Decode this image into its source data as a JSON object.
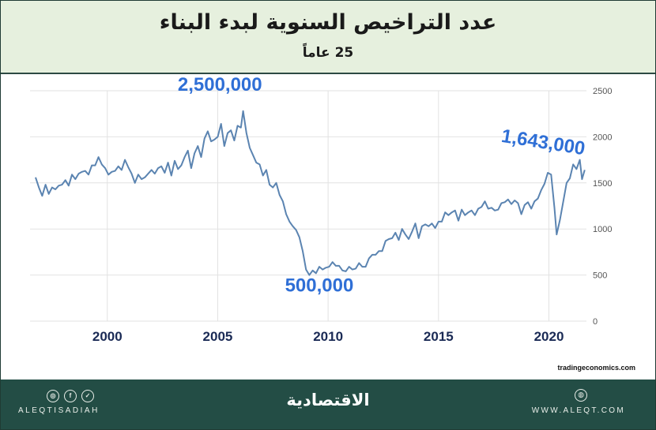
{
  "header": {
    "title": "عدد التراخيص السنوية لبدء البناء",
    "subtitle": "25 عاماً"
  },
  "chart_data": {
    "type": "line",
    "title": "عدد التراخيص السنوية لبدء البناء",
    "subtitle": "25 عاماً",
    "xlim": [
      1996.5,
      2021.7
    ],
    "ylim": [
      0,
      2500
    ],
    "x_ticks": [
      2000,
      2005,
      2010,
      2015,
      2020
    ],
    "y_ticks": [
      0,
      500,
      1000,
      1500,
      2000,
      2500
    ],
    "grid": true,
    "line_color": "#5b84b1",
    "annotation_color": "#2f6fd6",
    "annotations": [
      {
        "text": "2,500,000",
        "x": 2005.1,
        "y": 2500
      },
      {
        "text": "500,000",
        "x": 2009.6,
        "y": 320
      },
      {
        "text": "1,643,000",
        "x": 2019.7,
        "y": 1875
      }
    ],
    "series": [
      {
        "points": [
          [
            1996.75,
            1560
          ],
          [
            1996.9,
            1450
          ],
          [
            1997.05,
            1360
          ],
          [
            1997.2,
            1480
          ],
          [
            1997.35,
            1380
          ],
          [
            1997.5,
            1450
          ],
          [
            1997.65,
            1430
          ],
          [
            1997.8,
            1470
          ],
          [
            1997.95,
            1480
          ],
          [
            1998.1,
            1530
          ],
          [
            1998.25,
            1470
          ],
          [
            1998.4,
            1590
          ],
          [
            1998.55,
            1540
          ],
          [
            1998.7,
            1600
          ],
          [
            1998.85,
            1620
          ],
          [
            1999.0,
            1630
          ],
          [
            1999.15,
            1590
          ],
          [
            1999.3,
            1690
          ],
          [
            1999.45,
            1690
          ],
          [
            1999.6,
            1780
          ],
          [
            1999.75,
            1700
          ],
          [
            1999.9,
            1660
          ],
          [
            2000.05,
            1590
          ],
          [
            2000.2,
            1620
          ],
          [
            2000.35,
            1630
          ],
          [
            2000.5,
            1680
          ],
          [
            2000.65,
            1640
          ],
          [
            2000.8,
            1750
          ],
          [
            2000.95,
            1670
          ],
          [
            2001.1,
            1600
          ],
          [
            2001.25,
            1500
          ],
          [
            2001.4,
            1590
          ],
          [
            2001.55,
            1540
          ],
          [
            2001.7,
            1560
          ],
          [
            2001.85,
            1600
          ],
          [
            2002.0,
            1640
          ],
          [
            2002.15,
            1600
          ],
          [
            2002.3,
            1660
          ],
          [
            2002.45,
            1680
          ],
          [
            2002.6,
            1610
          ],
          [
            2002.75,
            1720
          ],
          [
            2002.9,
            1580
          ],
          [
            2003.05,
            1740
          ],
          [
            2003.2,
            1650
          ],
          [
            2003.35,
            1690
          ],
          [
            2003.5,
            1780
          ],
          [
            2003.65,
            1850
          ],
          [
            2003.8,
            1660
          ],
          [
            2003.95,
            1820
          ],
          [
            2004.1,
            1900
          ],
          [
            2004.25,
            1780
          ],
          [
            2004.4,
            1980
          ],
          [
            2004.55,
            2060
          ],
          [
            2004.7,
            1950
          ],
          [
            2004.85,
            1970
          ],
          [
            2005.0,
            2000
          ],
          [
            2005.15,
            2140
          ],
          [
            2005.3,
            1900
          ],
          [
            2005.45,
            2040
          ],
          [
            2005.6,
            2070
          ],
          [
            2005.75,
            1960
          ],
          [
            2005.9,
            2120
          ],
          [
            2006.05,
            2100
          ],
          [
            2006.15,
            2280
          ],
          [
            2006.3,
            2040
          ],
          [
            2006.45,
            1880
          ],
          [
            2006.6,
            1800
          ],
          [
            2006.75,
            1720
          ],
          [
            2006.9,
            1700
          ],
          [
            2007.05,
            1580
          ],
          [
            2007.2,
            1640
          ],
          [
            2007.35,
            1480
          ],
          [
            2007.5,
            1450
          ],
          [
            2007.65,
            1500
          ],
          [
            2007.8,
            1370
          ],
          [
            2007.95,
            1300
          ],
          [
            2008.1,
            1160
          ],
          [
            2008.25,
            1080
          ],
          [
            2008.4,
            1030
          ],
          [
            2008.55,
            990
          ],
          [
            2008.7,
            910
          ],
          [
            2008.85,
            760
          ],
          [
            2009.0,
            560
          ],
          [
            2009.15,
            500
          ],
          [
            2009.3,
            550
          ],
          [
            2009.45,
            520
          ],
          [
            2009.6,
            590
          ],
          [
            2009.75,
            560
          ],
          [
            2009.9,
            580
          ],
          [
            2010.05,
            590
          ],
          [
            2010.2,
            640
          ],
          [
            2010.35,
            600
          ],
          [
            2010.5,
            600
          ],
          [
            2010.65,
            550
          ],
          [
            2010.8,
            540
          ],
          [
            2010.95,
            590
          ],
          [
            2011.1,
            560
          ],
          [
            2011.25,
            570
          ],
          [
            2011.4,
            630
          ],
          [
            2011.55,
            590
          ],
          [
            2011.7,
            590
          ],
          [
            2011.85,
            680
          ],
          [
            2012.0,
            720
          ],
          [
            2012.15,
            720
          ],
          [
            2012.3,
            760
          ],
          [
            2012.45,
            760
          ],
          [
            2012.6,
            870
          ],
          [
            2012.75,
            890
          ],
          [
            2012.9,
            900
          ],
          [
            2013.05,
            960
          ],
          [
            2013.2,
            880
          ],
          [
            2013.35,
            1000
          ],
          [
            2013.5,
            940
          ],
          [
            2013.65,
            890
          ],
          [
            2013.8,
            970
          ],
          [
            2013.95,
            1060
          ],
          [
            2014.1,
            900
          ],
          [
            2014.25,
            1030
          ],
          [
            2014.4,
            1050
          ],
          [
            2014.55,
            1030
          ],
          [
            2014.7,
            1060
          ],
          [
            2014.85,
            1010
          ],
          [
            2015.0,
            1080
          ],
          [
            2015.15,
            1080
          ],
          [
            2015.3,
            1180
          ],
          [
            2015.45,
            1150
          ],
          [
            2015.6,
            1180
          ],
          [
            2015.75,
            1200
          ],
          [
            2015.9,
            1090
          ],
          [
            2016.05,
            1210
          ],
          [
            2016.2,
            1150
          ],
          [
            2016.35,
            1180
          ],
          [
            2016.5,
            1200
          ],
          [
            2016.65,
            1150
          ],
          [
            2016.8,
            1220
          ],
          [
            2016.95,
            1240
          ],
          [
            2017.1,
            1300
          ],
          [
            2017.25,
            1220
          ],
          [
            2017.4,
            1230
          ],
          [
            2017.55,
            1200
          ],
          [
            2017.7,
            1210
          ],
          [
            2017.85,
            1280
          ],
          [
            2018.0,
            1290
          ],
          [
            2018.15,
            1320
          ],
          [
            2018.3,
            1270
          ],
          [
            2018.45,
            1310
          ],
          [
            2018.6,
            1280
          ],
          [
            2018.75,
            1160
          ],
          [
            2018.9,
            1260
          ],
          [
            2019.05,
            1290
          ],
          [
            2019.2,
            1220
          ],
          [
            2019.35,
            1300
          ],
          [
            2019.5,
            1330
          ],
          [
            2019.65,
            1420
          ],
          [
            2019.8,
            1490
          ],
          [
            2019.95,
            1610
          ],
          [
            2020.1,
            1590
          ],
          [
            2020.25,
            1230
          ],
          [
            2020.35,
            940
          ],
          [
            2020.5,
            1100
          ],
          [
            2020.65,
            1300
          ],
          [
            2020.8,
            1500
          ],
          [
            2020.95,
            1550
          ],
          [
            2021.1,
            1700
          ],
          [
            2021.25,
            1650
          ],
          [
            2021.4,
            1750
          ],
          [
            2021.5,
            1540
          ],
          [
            2021.62,
            1640
          ]
        ]
      }
    ]
  },
  "source_text": "tradingeconomics.com",
  "footer": {
    "handle": "ALEQTISADIAH",
    "logo": "الاقتصادية",
    "website": "WWW.ALEQT.COM",
    "icons": [
      "instagram-icon",
      "facebook-icon",
      "twitter-icon",
      "globe-icon"
    ]
  }
}
